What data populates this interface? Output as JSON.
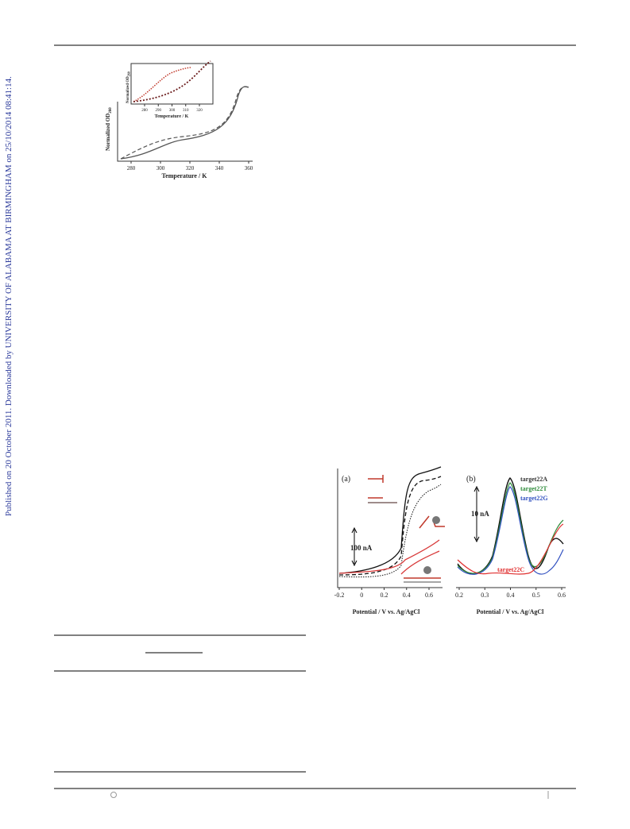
{
  "watermark": "Published on 20 October 2011. Downloaded by UNIVERSITY OF ALABAMA AT BIRMINGHAM on 25/10/2014 08:41:14.",
  "figure1": {
    "main": {
      "y_label": "Normalized OD",
      "y_label_sub": "260",
      "x_label": "Temperature / K",
      "xticks": [
        280,
        300,
        320,
        340,
        360
      ]
    },
    "inset": {
      "y_label": "Normalized OD",
      "y_label_sub": "260",
      "x_label": "Temperature / K",
      "xticks": [
        280,
        290,
        300,
        310,
        320
      ]
    }
  },
  "figure2": {
    "a": {
      "panel": "(a)",
      "scale_bar": "100 nA",
      "x_label": "Potential / V vs. Ag/AgCl",
      "xticks": [
        -0.2,
        0,
        0.2,
        0.4,
        0.6
      ]
    },
    "b": {
      "panel": "(b)",
      "scale_bar": "10 nA",
      "x_label": "Potential / V vs. Ag/AgCl",
      "xticks": [
        0.2,
        0.3,
        0.4,
        0.5,
        0.6
      ],
      "legend": [
        "target22A",
        "target22T",
        "target22G"
      ],
      "annotation": "target22C"
    }
  }
}
